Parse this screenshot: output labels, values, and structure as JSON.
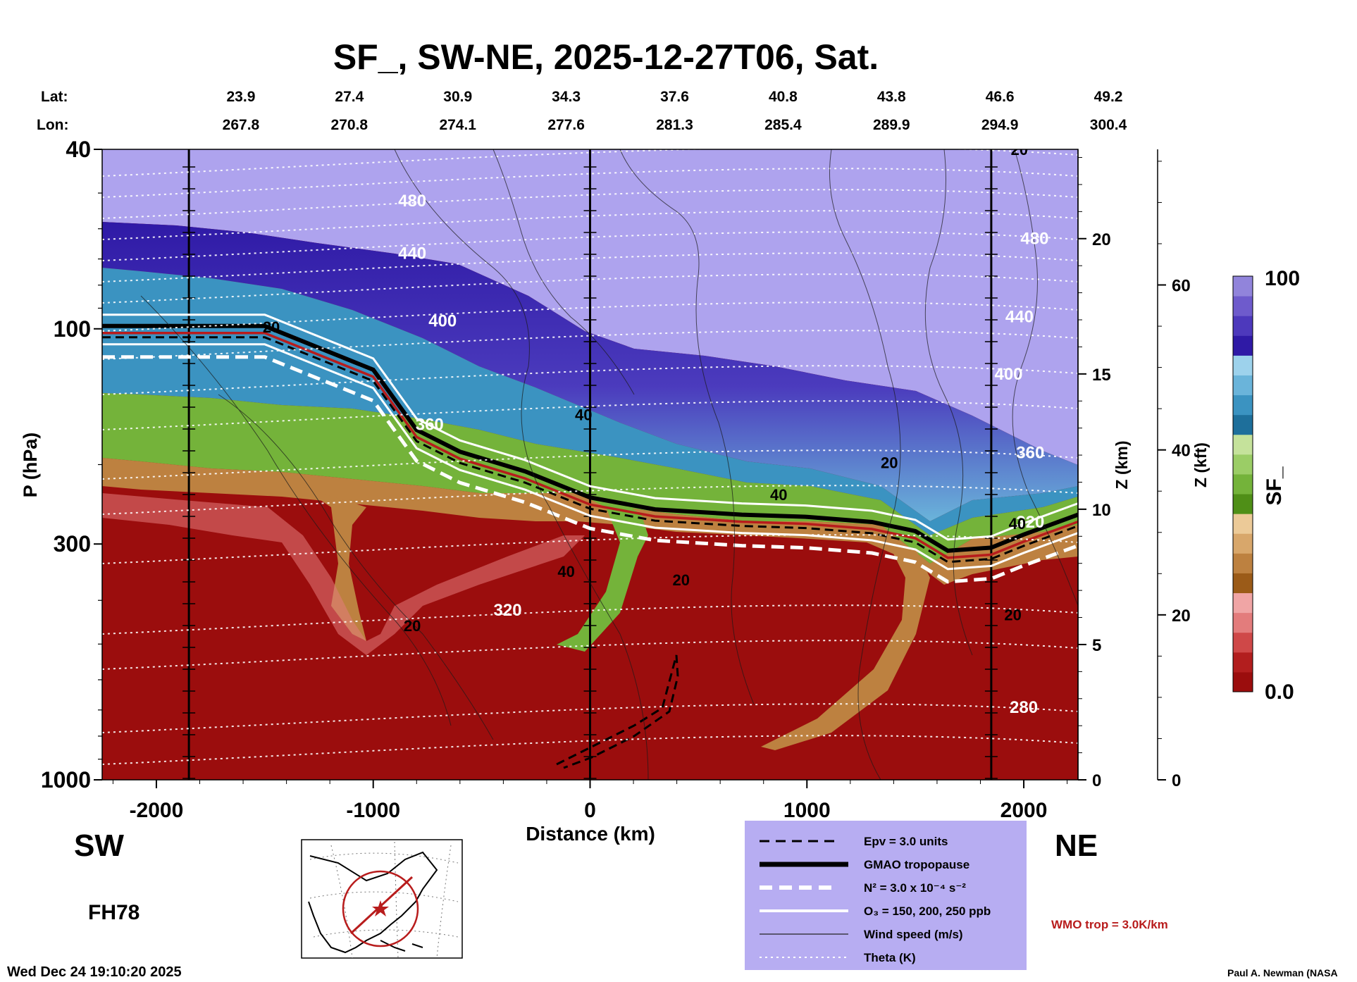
{
  "chart_data": {
    "type": "heatmap",
    "title": "SF_, SW-NE, 2025-12-27T06, Sat.",
    "xlabel": "Distance (km)",
    "ylabel": "P (hPa)",
    "zlabel": "Z (km)",
    "zkft_label": "Z (kft)",
    "colorbar_label": "SF_",
    "colorbar_max_label": "100",
    "colorbar_min_label": "0.0",
    "xlim": [
      -2250,
      2250
    ],
    "x_ticks": [
      -2000,
      -1000,
      0,
      1000,
      2000
    ],
    "x_tick_labels": [
      "-2000",
      "-1000",
      "0",
      "1000",
      "2000"
    ],
    "ylim_hpa": [
      1000,
      40
    ],
    "y_ticks_hpa": [
      40,
      100,
      300,
      1000
    ],
    "y_tick_labels": [
      "40",
      "100",
      "300",
      "1000"
    ],
    "z_ticks_km": [
      0,
      5,
      10,
      15,
      20
    ],
    "z_tick_labels": [
      "0",
      "5",
      "10",
      "15",
      "20"
    ],
    "zkft_ticks": [
      0,
      20,
      40,
      60
    ],
    "zkft_tick_labels": [
      "0",
      "20",
      "40",
      "60"
    ],
    "lat_label": "Lat:",
    "lon_label": "Lon:",
    "latlon_distances_km": [
      -2000,
      -1500,
      -1000,
      -500,
      0,
      500,
      1000,
      1500,
      2000
    ],
    "lats": [
      "23.9",
      "27.4",
      "30.9",
      "34.3",
      "37.6",
      "40.8",
      "43.8",
      "46.6",
      "49.2"
    ],
    "lons": [
      "267.8",
      "270.8",
      "274.1",
      "277.6",
      "281.3",
      "285.4",
      "289.9",
      "294.9",
      "300.4"
    ],
    "vertical_lines_km": [
      -1850,
      0,
      1850
    ],
    "tropopause_hpa": [
      [
        -2250,
        100
      ],
      [
        -1800,
        100
      ],
      [
        -1500,
        100
      ],
      [
        -1000,
        125
      ],
      [
        -800,
        170
      ],
      [
        -600,
        190
      ],
      [
        -300,
        210
      ],
      [
        0,
        240
      ],
      [
        300,
        255
      ],
      [
        700,
        262
      ],
      [
        1000,
        265
      ],
      [
        1300,
        272
      ],
      [
        1500,
        285
      ],
      [
        1650,
        315
      ],
      [
        1850,
        310
      ],
      [
        2000,
        290
      ],
      [
        2250,
        262
      ]
    ],
    "theta_labels": [
      {
        "text": "480",
        "x_km": -820,
        "p_hpa": 52
      },
      {
        "text": "440",
        "x_km": -820,
        "p_hpa": 68
      },
      {
        "text": "400",
        "x_km": -680,
        "p_hpa": 96
      },
      {
        "text": "360",
        "x_km": -740,
        "p_hpa": 163
      },
      {
        "text": "320",
        "x_km": -380,
        "p_hpa": 420
      },
      {
        "text": "480",
        "x_km": 2050,
        "p_hpa": 63
      },
      {
        "text": "440",
        "x_km": 1980,
        "p_hpa": 94
      },
      {
        "text": "400",
        "x_km": 1930,
        "p_hpa": 126
      },
      {
        "text": "360",
        "x_km": 2030,
        "p_hpa": 188
      },
      {
        "text": "320",
        "x_km": 2030,
        "p_hpa": 268
      },
      {
        "text": "280",
        "x_km": 2000,
        "p_hpa": 690
      }
    ],
    "wind_labels": [
      {
        "text": "20",
        "x_km": -1470,
        "p_hpa": 99
      },
      {
        "text": "40",
        "x_km": -30,
        "p_hpa": 155
      },
      {
        "text": "20",
        "x_km": 1380,
        "p_hpa": 198
      },
      {
        "text": "40",
        "x_km": 870,
        "p_hpa": 233
      },
      {
        "text": "40",
        "x_km": -110,
        "p_hpa": 345
      },
      {
        "text": "20",
        "x_km": 420,
        "p_hpa": 360
      },
      {
        "text": "20",
        "x_km": -820,
        "p_hpa": 455
      },
      {
        "text": "20",
        "x_km": 1950,
        "p_hpa": 430
      },
      {
        "text": "20",
        "x_km": 1980,
        "p_hpa": 40
      },
      {
        "text": "40",
        "x_km": 1970,
        "p_hpa": 270
      }
    ],
    "colorbar_colors": [
      "#9b0d0d",
      "#b21e1e",
      "#cf4848",
      "#e37c7c",
      "#f0a5a5",
      "#9b5b18",
      "#bd8140",
      "#d8a76b",
      "#ecca98",
      "#4f8f17",
      "#74b33a",
      "#9bcd66",
      "#c5e29b",
      "#1e6f9b",
      "#3b93c1",
      "#6ab4da",
      "#9dd2ec",
      "#2f1aa6",
      "#4d39bc",
      "#6e5bcc",
      "#9184db"
    ],
    "wmo_label": "WMO trop = 3.0K/km"
  },
  "side_left": "SW",
  "side_right": "NE",
  "forecast_hour": "FH78",
  "timestamp": "Wed Dec 24 19:10:20 2025",
  "credit": "Paul A. Newman (NASA",
  "legend": {
    "items": [
      {
        "label": "Epv = 3.0 units"
      },
      {
        "label": "GMAO tropopause"
      },
      {
        "label": "N² = 3.0 x 10⁻⁴ s⁻²"
      },
      {
        "label": "O₃ = 150, 200, 250 ppb"
      },
      {
        "label": "Wind speed (m/s)"
      },
      {
        "label": "Theta (K)"
      }
    ]
  }
}
